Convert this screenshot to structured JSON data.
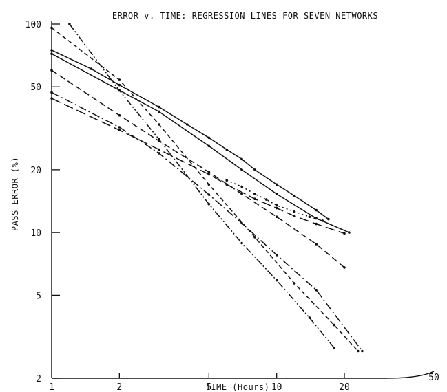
{
  "chart_data": {
    "type": "line",
    "title": "ERROR v. TIME: REGRESSION LINES FOR SEVEN NETWORKS",
    "xlabel": "TIME (Hours)",
    "ylabel": "PASS ERROR (%)",
    "x_scale": "log",
    "y_scale": "log",
    "xlim": [
      1,
      50
    ],
    "ylim": [
      2,
      100
    ],
    "x_ticks": [
      1,
      2,
      5,
      10,
      20,
      50
    ],
    "y_ticks": [
      2,
      5,
      10,
      20,
      50,
      100
    ],
    "grid": false,
    "series": [
      {
        "style": "solid",
        "x": [
          1,
          1.5,
          2,
          3,
          4,
          5,
          6,
          7,
          8,
          10,
          12,
          15,
          17
        ],
        "y": [
          75,
          61,
          51,
          40,
          33,
          28.5,
          25,
          22.5,
          20,
          17,
          15,
          12.8,
          11.6
        ]
      },
      {
        "style": "solid",
        "x": [
          1,
          3,
          5,
          7,
          10,
          15,
          21
        ],
        "y": [
          72,
          38,
          26,
          20,
          15.3,
          11.7,
          10
        ]
      },
      {
        "style": "long-dash",
        "x": [
          1,
          2,
          3,
          5,
          6,
          8,
          10,
          12,
          15,
          20
        ],
        "y": [
          44,
          31,
          25,
          19,
          17,
          14.5,
          13.1,
          12,
          11,
          9.9
        ]
      },
      {
        "style": "dash",
        "x": [
          1,
          2,
          3,
          5,
          7,
          10,
          15,
          20
        ],
        "y": [
          60,
          36.5,
          27.5,
          19.5,
          15.3,
          11.9,
          8.8,
          6.8
        ]
      },
      {
        "style": "dash-dot",
        "x": [
          1,
          2,
          3,
          5,
          7,
          10,
          15,
          24
        ],
        "y": [
          47,
          32,
          24,
          15.2,
          11.1,
          7.8,
          5.3,
          2.7
        ]
      },
      {
        "style": "short-dash",
        "x": [
          1,
          2,
          3,
          5,
          8,
          12,
          18,
          23
        ],
        "y": [
          96,
          54,
          33,
          17,
          9.5,
          5.7,
          3.6,
          2.7
        ]
      },
      {
        "style": "dash-dot-dot",
        "x": [
          1.2,
          2,
          3,
          5,
          7,
          10,
          14,
          18
        ],
        "y": [
          100,
          48,
          28,
          13.7,
          8.9,
          5.9,
          3.9,
          2.8
        ]
      },
      {
        "style": "dotted",
        "x": [
          6,
          7,
          8,
          9,
          10,
          12,
          14,
          16
        ],
        "y": [
          17.8,
          16.6,
          15.3,
          14.4,
          13.5,
          12.6,
          11.9,
          11.4
        ]
      }
    ]
  }
}
